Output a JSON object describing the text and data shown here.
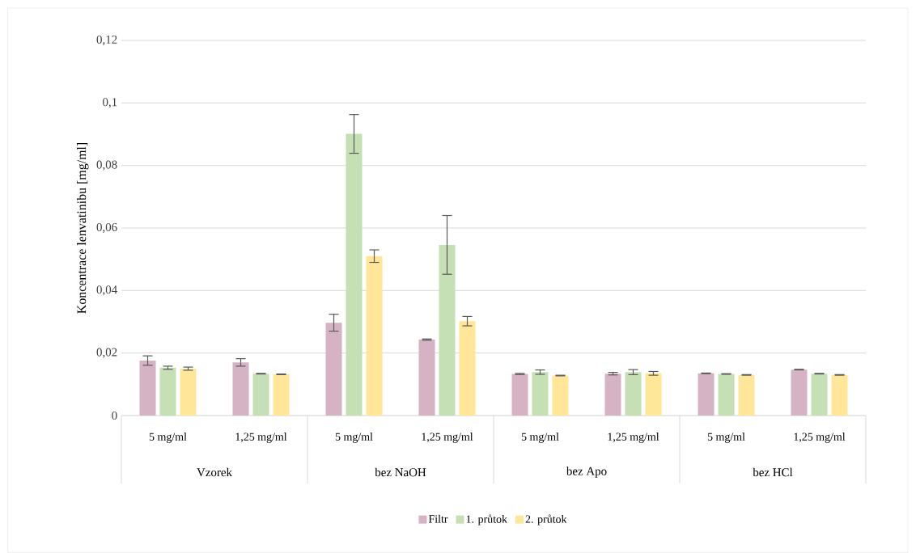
{
  "chart_data": {
    "type": "bar",
    "ylabel": "Koncentrace lenvatinibu [mg/ml]",
    "categories": [
      "5 mg/ml",
      "1,25 mg/ml",
      "5 mg/ml",
      "1,25 mg/ml",
      "5 mg/ml",
      "1,25 mg/ml",
      "5 mg/ml",
      "1,25 mg/ml"
    ],
    "annotations": [
      "Vzorek",
      "bez NaOH",
      "bez Apo",
      "bez HCl"
    ],
    "series": [
      {
        "name": "Filtr",
        "color": "#d5b3c5",
        "values": [
          0.0176,
          0.017,
          0.0297,
          0.0243,
          0.0133,
          0.0134,
          0.0135,
          0.0147
        ],
        "errors": [
          0.0015,
          0.0012,
          0.0027,
          0.0002,
          0.0002,
          0.0004,
          0.0001,
          0.0001
        ]
      },
      {
        "name": "1. průtok",
        "color": "#c5e0b4",
        "values": [
          0.0153,
          0.0134,
          0.0901,
          0.0546,
          0.0139,
          0.0139,
          0.0133,
          0.0134
        ],
        "errors": [
          0.0005,
          0.0001,
          0.0062,
          0.0094,
          0.0007,
          0.0008,
          0.0001,
          0.0001
        ]
      },
      {
        "name": "2. průtok",
        "color": "#ffe699",
        "values": [
          0.015,
          0.0132,
          0.051,
          0.0302,
          0.0128,
          0.0135,
          0.013,
          0.013
        ],
        "errors": [
          0.0005,
          0.0001,
          0.002,
          0.0015,
          0.0001,
          0.0006,
          0.0001,
          0.0001
        ]
      }
    ],
    "ylim": [
      0,
      0.12
    ],
    "yticks": [
      0,
      {
        "value": 0.02,
        "label": "0,02"
      },
      {
        "value": 0.04,
        "label": "0,04"
      },
      {
        "value": 0.06,
        "label": "0,06"
      },
      {
        "value": 0.08,
        "label": "0,08"
      },
      {
        "value": 0.1,
        "label": "0,1"
      },
      {
        "value": 0.12,
        "label": "0,12"
      }
    ],
    "grid": "y",
    "legend": "bottom"
  }
}
